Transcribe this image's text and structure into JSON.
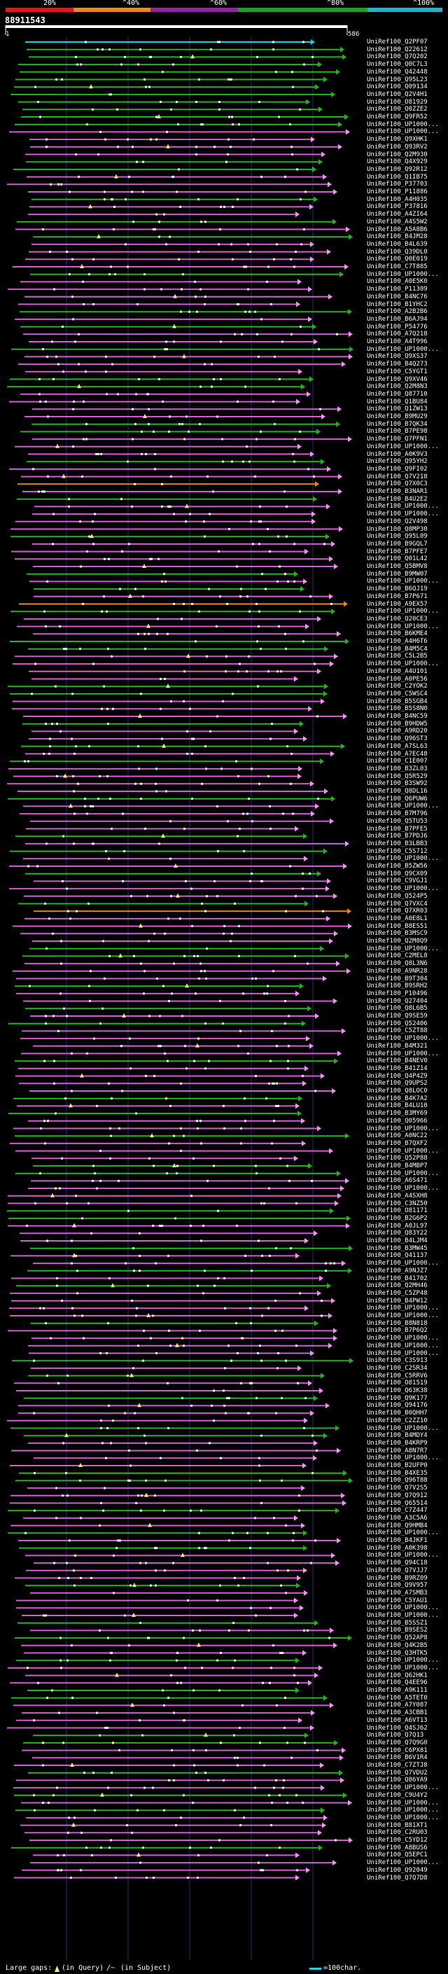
{
  "legend": {
    "percent_labels": [
      "20%",
      "^40%",
      "^60%",
      "^80%",
      "^100%"
    ],
    "segment_colors": [
      "#e8141c",
      "#f0851a",
      "#9a1ea8",
      "#12a81a",
      "#1ab8c8"
    ]
  },
  "query": {
    "id": "88911543",
    "start": "1",
    "end": "586"
  },
  "colors": {
    "cyan": "#1ad0e0",
    "green": "#22b41e",
    "magenta": "#d25ad2",
    "orange": "#e08a1a",
    "pink": "#f096f0",
    "white": "#ffffff",
    "yellow": "#f0f080",
    "grid": "#2a2a6a"
  },
  "footer": {
    "gaps_label": "Large gaps:",
    "in_query": "(in Query)",
    "separator": "/~",
    "in_subject": "(in Subject)",
    "scale_label": "=100char."
  },
  "hits": [
    "UniRef100_Q2PF07",
    "UniRef100_Q22612",
    "UniRef100_Q7Q202",
    "UniRef100_Q0C7L3",
    "UniRef100_Q42448",
    "UniRef100_Q95L23",
    "UniRef100_Q09134",
    "UniRef100_Q2V4H1",
    "UniRef100_O81929",
    "UniRef100_Q0ZZE2",
    "UniRef100_Q9FR52",
    "UniRef100_UP1000...",
    "UniRef100_UP1000...",
    "UniRef100_Q9XHK1",
    "UniRef100_Q93RV2",
    "UniRef100_Q2M930",
    "UniRef100_Q4X929",
    "UniRef100_Q92R12",
    "UniRef100_Q1IB75",
    "UniRef100_P37703",
    "UniRef100_P11886",
    "UniRef100_A4H035",
    "UniRef100_P37816",
    "UniRef100_A4ZI64",
    "UniRef100_A4S5W2",
    "UniRef100_A5A8B6",
    "UniRef100_B4JM28",
    "UniRef100_B4L639",
    "UniRef100_Q39DL0",
    "UniRef100_Q0E019",
    "UniRef100_C7T885",
    "UniRef100_UP1000...",
    "UniRef100_A0E5K0",
    "UniRef100_P11309",
    "UniRef100_B4NC76",
    "UniRef100_B1YHC2",
    "UniRef100_A2B2B6",
    "UniRef100_B6AJ94",
    "UniRef100_P54776",
    "UniRef100_A7Q218",
    "UniRef100_A4T996",
    "UniRef100_UP1000...",
    "UniRef100_Q9XS37",
    "UniRef100_B4Q273",
    "UniRef100_C5YGT1",
    "UniRef100_Q9XV46",
    "UniRef100_Q2M8N3",
    "UniRef100_Q87710",
    "UniRef100_Q1BU84",
    "UniRef100_Q1ZW13",
    "UniRef100_B9MU29",
    "UniRef100_B7QK34",
    "UniRef100_B7PE98",
    "UniRef100_Q7PFN1",
    "UniRef100_UP1000...",
    "UniRef100_A0K9V3",
    "UniRef100_Q95YH2",
    "UniRef100_Q9FI02",
    "UniRef100_Q7V218",
    "UniRef100_Q7X0C3",
    "UniRef100_B3NAR1",
    "UniRef100_B4U2E2",
    "UniRef100_UP1000...",
    "UniRef100_UP1000...",
    "UniRef100_Q2V498",
    "UniRef100_Q8MP30",
    "UniRef100_Q95L09",
    "UniRef100_B9GQL7",
    "UniRef100_B7PFE7",
    "UniRef100_Q01L42",
    "UniRef100_Q5BMV8",
    "UniRef100_B9MW07",
    "UniRef100_UP1000...",
    "UniRef100_B6QJ19",
    "UniRef100_B7P671",
    "UniRef100_A9EX57",
    "UniRef100_UP1000...",
    "UniRef100_Q20CE3",
    "UniRef100_UP1000...",
    "UniRef100_B6KME4",
    "UniRef100_A4H6T6",
    "UniRef100_B4M5C4",
    "UniRef100_C5L2B5",
    "UniRef100_UP1000...",
    "UniRef100_A4U101",
    "UniRef100_A0PE56",
    "UniRef100_C2YOK2",
    "UniRef100_C5WSC4",
    "UniRef100_B5SGB4",
    "UniRef100_B5S8N0",
    "UniRef100_B4NC59",
    "UniRef100_B9HDW5",
    "UniRef100_A9RD20",
    "UniRef100_Q96ST3",
    "UniRef100_A7SL63",
    "UniRef100_A7EC48",
    "UniRef100_C1E007",
    "UniRef100_B3ZL03",
    "UniRef100_Q5R529",
    "UniRef100_B3SW92",
    "UniRef100_Q8DL16",
    "UniRef100_Q6PUW6",
    "UniRef100_UP1000...",
    "UniRef100_B7M796",
    "UniRef100_Q5TU53",
    "UniRef100_B7PFE5",
    "UniRef100_B7PDJ6",
    "UniRef100_B3LBB3",
    "UniRef100_C5S712",
    "UniRef100_UP1000...",
    "UniRef100_B5ZW56",
    "UniRef100_Q9CX09",
    "UniRef100_C9VGJ1",
    "UniRef100_UP1000...",
    "UniRef100_Q524P5",
    "UniRef100_Q7VXC4",
    "UniRef100_Q7XR03",
    "UniRef100_A0E8L1",
    "UniRef100_B8ES51",
    "UniRef100_B3MSC9",
    "UniRef100_Q2M8Q9",
    "UniRef100_UP1000...",
    "UniRef100_C2MEL8",
    "UniRef100_Q8L3N6",
    "UniRef100_A9NR28",
    "UniRef100_B9T304",
    "UniRef100_B9SRH2",
    "UniRef100_P10496",
    "UniRef100_Q27404",
    "UniRef100_Q8L6B5",
    "UniRef100_Q9SE59",
    "UniRef100_Q52406",
    "UniRef100_C5ZT88",
    "UniRef100_UP1000...",
    "UniRef100_B4M321",
    "UniRef100_UP1000...",
    "UniRef100_B4NEV0",
    "UniRef100_B41Z14",
    "UniRef100_Q4P4Z9",
    "UniRef100_Q9UPS2",
    "UniRef100_Q8LOC0",
    "UniRef100_B4K7A2",
    "UniRef100_B4LU10",
    "UniRef100_B3MY69",
    "UniRef100_Q05966",
    "UniRef100_UP1000...",
    "UniRef100_A0NC22",
    "UniRef100_B7QXF2",
    "UniRef100_UP1000...",
    "UniRef100_Q52P88",
    "UniRef100_B4MBP7",
    "UniRef100_UP1000...",
    "UniRef100_A6S471",
    "UniRef100_UP1000...",
    "UniRef100_A4SXH8",
    "UniRef100_C3NZ50",
    "UniRef100_O81171",
    "UniRef100_B2G6P2",
    "UniRef100_A0JL97",
    "UniRef100_Q83Y22",
    "UniRef100_B4LJM4",
    "UniRef100_B3MW45",
    "UniRef100_Q41137",
    "UniRef100_UP1000...",
    "UniRef100_A9NJZ7",
    "UniRef100_B41702",
    "UniRef100_Q2MH46",
    "UniRef100_C5ZP48",
    "UniRef100_B4PW12",
    "UniRef100_UP1000...",
    "UniRef100_UP1000...",
    "UniRef100_B8N818",
    "UniRef100_B7P6Q2",
    "UniRef100_UP1000...",
    "UniRef100_UP1000...",
    "UniRef100_UP1000...",
    "UniRef100_C3S913",
    "UniRef100_C2SR34",
    "UniRef100_C5RRV6",
    "UniRef100_O81519",
    "UniRef100_Q63K38",
    "UniRef100_Q9K177",
    "UniRef100_Q94176",
    "UniRef100_B0QHH7",
    "UniRef100_C2ZZ10",
    "UniRef100_UP1000...",
    "UniRef100_B4MDY4",
    "UniRef100_B4KRP9",
    "UniRef100_A8N7R7",
    "UniRef100_UP1000...",
    "UniRef100_B2UFP0",
    "UniRef100_B4XE35",
    "UniRef100_Q96T88",
    "UniRef100_Q7V2S5",
    "UniRef100_Q7Q912",
    "UniRef100_Q65514",
    "UniRef100_C7Z447",
    "UniRef100_A3C5A6",
    "UniRef100_Q9HMB4",
    "UniRef100_UP1000...",
    "UniRef100_B4JKF1",
    "UniRef100_A0K398",
    "UniRef100_UP1000...",
    "UniRef100_Q94C18",
    "UniRef100_Q7VJJ7",
    "UniRef100_B9RZ09",
    "UniRef100_Q9V957",
    "UniRef100_A7SMB3",
    "UniRef100_C5YAU1",
    "UniRef100_UP1000...",
    "UniRef100_UP1000...",
    "UniRef100_B5SSZ1",
    "UniRef100_B9SES2",
    "UniRef100_Q52AP8",
    "UniRef100_Q4K2B5",
    "UniRef100_Q3HTK5",
    "UniRef100_UP1000...",
    "UniRef100_UP1000...",
    "UniRef100_Q62HK1",
    "UniRef100_Q4EE96",
    "UniRef100_A9K111",
    "UniRef100_A5TET0",
    "UniRef100_A7Y087",
    "UniRef100_A3CBB1",
    "UniRef100_A6VT13",
    "UniRef100_Q4SJ62",
    "UniRef100_Q7Q13",
    "UniRef100_Q7Q9G0",
    "UniRef100_C6PX81",
    "UniRef100_B6V1R4",
    "UniRef100_C7ZTJ8",
    "UniRef100_Q7VDU2",
    "UniRef100_Q86YA9",
    "UniRef100_UP1000...",
    "UniRef100_C9U4Y2",
    "UniRef100_UP1000...",
    "UniRef100_UP1000...",
    "UniRef100_UP1000...",
    "UniRef100_B81XT1",
    "UniRef100_C2RU03",
    "UniRef100_C5YD12",
    "UniRef100_A8BUS6",
    "UniRef100_Q5EPC1",
    "UniRef100_UP1000...",
    "UniRef100_Q92049",
    "UniRef100_Q7Q7D8"
  ]
}
